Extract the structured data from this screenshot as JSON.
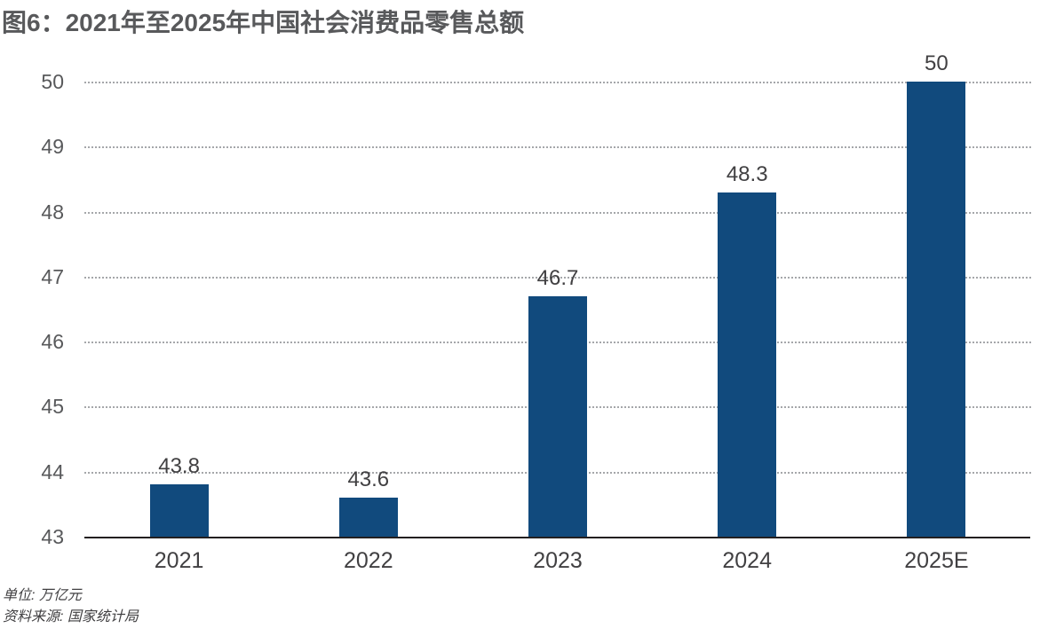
{
  "title": "图6：2021年至2025年中国社会消费品零售总额",
  "footer": {
    "unit_label": "单位: 万亿元",
    "source_label": "资料来源: 国家统计局"
  },
  "colors": {
    "bar": "#114a7d",
    "title_text": "#58595b",
    "tick_text": "#58595b",
    "data_label_text": "#414042",
    "axis_line": "#231f20",
    "gridline": "#a5a7aa"
  },
  "chart_data": {
    "type": "bar",
    "title": "图6：2021年至2025年中国社会消费品零售总额",
    "categories": [
      "2021",
      "2022",
      "2023",
      "2024",
      "2025E"
    ],
    "values": [
      43.8,
      43.6,
      46.7,
      48.3,
      50
    ],
    "data_labels": [
      "43.8",
      "43.6",
      "46.7",
      "48.3",
      "50"
    ],
    "xlabel": "",
    "ylabel": "",
    "unit": "万亿元",
    "source": "国家统计局",
    "ylim": [
      43,
      50
    ],
    "yticks": [
      43,
      44,
      45,
      46,
      47,
      48,
      49,
      50
    ],
    "grid": "horizontal-dotted",
    "legend": "none"
  }
}
